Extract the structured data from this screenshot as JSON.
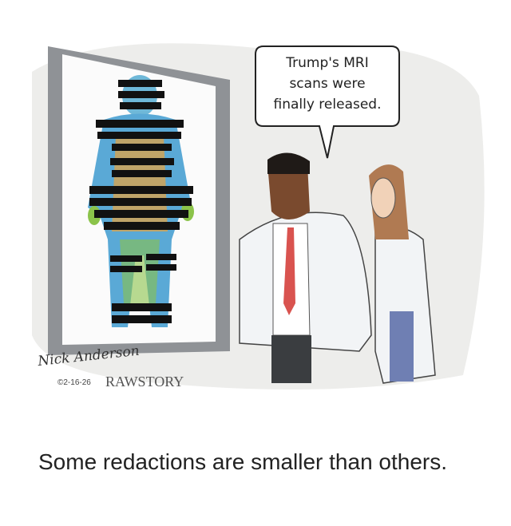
{
  "cartoon": {
    "bubble": {
      "lines": [
        "Trump's MRI",
        "scans were",
        "finally released."
      ]
    },
    "signature": {
      "artist": "Nick Anderson",
      "date": "©2-16-26",
      "publisher": "RAWSTORY"
    }
  },
  "caption": "Some redactions are smaller than others."
}
